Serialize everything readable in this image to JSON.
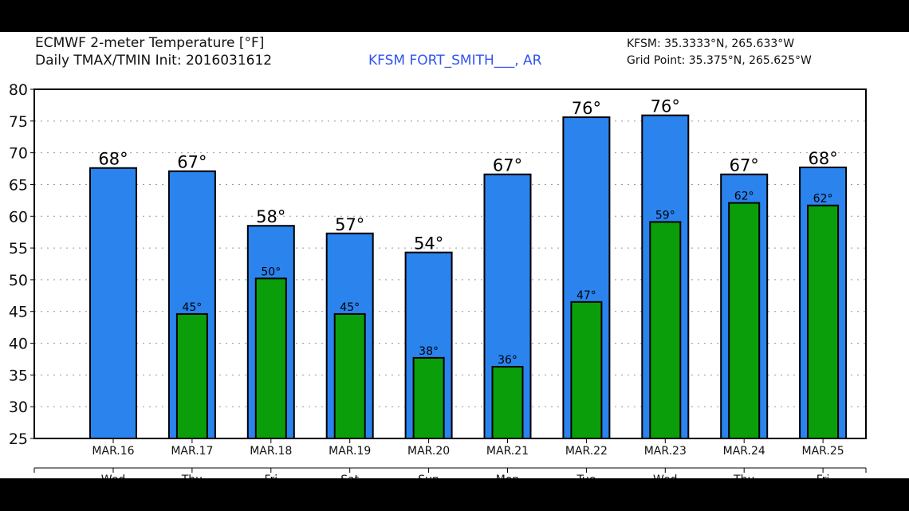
{
  "header": {
    "title_line1": "ECMWF 2-meter Temperature [°F]",
    "title_line2": "Daily TMAX/TMIN Init: 2016031612",
    "station": "KFSM FORT_SMITH___, AR",
    "station_coords": "KFSM: 35.3333°N, 265.633°W",
    "grid_point": "Grid Point: 35.375°N, 265.625°W"
  },
  "colors": {
    "tmax": "#2b83ee",
    "tmin": "#0a9e0a",
    "station": "#3355ee"
  },
  "chart_data": {
    "type": "bar",
    "title": "ECMWF 2-meter Temperature [°F]",
    "categories": [
      "MAR.16",
      "MAR.17",
      "MAR.18",
      "MAR.19",
      "MAR.20",
      "MAR.21",
      "MAR.22",
      "MAR.23",
      "MAR.24",
      "MAR.25"
    ],
    "weekdays": [
      "Wed",
      "Thu",
      "Fri",
      "Sat",
      "Sun",
      "Mon",
      "Tue",
      "Wed",
      "Thu",
      "Fri"
    ],
    "series": [
      {
        "key": "tmax",
        "values": [
          67.6,
          67.1,
          58.5,
          57.3,
          54.3,
          66.6,
          75.6,
          75.9,
          66.6,
          67.7
        ],
        "labels": [
          "68°",
          "67°",
          "58°",
          "57°",
          "54°",
          "67°",
          "76°",
          "76°",
          "67°",
          "68°"
        ]
      },
      {
        "key": "tmin",
        "values": [
          null,
          44.6,
          50.2,
          44.6,
          37.7,
          36.3,
          46.5,
          59.1,
          62.1,
          61.7
        ],
        "labels": [
          null,
          "45°",
          "50°",
          "45°",
          "38°",
          "36°",
          "47°",
          "59°",
          "62°",
          "62°"
        ]
      }
    ],
    "ylim": [
      25,
      80
    ],
    "yticks": [
      25,
      30,
      35,
      40,
      45,
      50,
      55,
      60,
      65,
      70,
      75,
      80
    ],
    "grid": true
  }
}
